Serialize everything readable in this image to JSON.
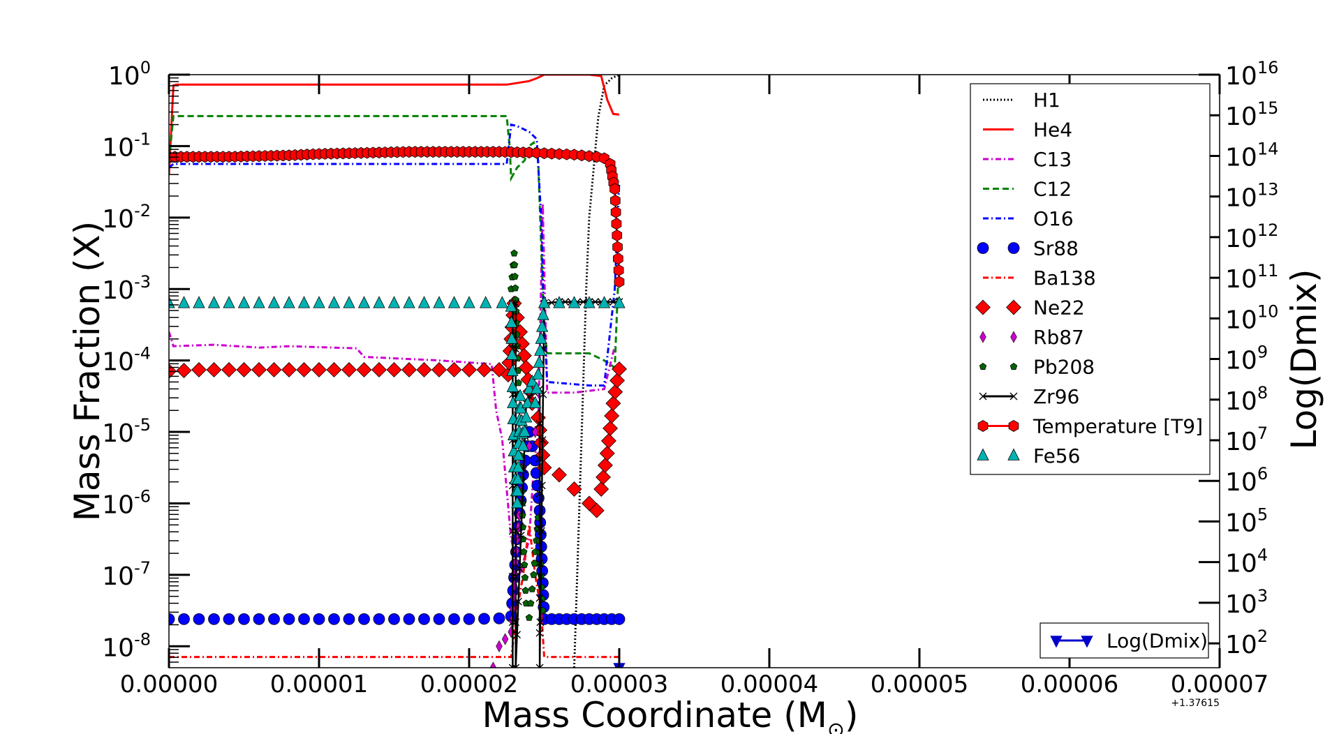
{
  "chart_data": {
    "type": "line",
    "xlabel": "Mass Coordinate (M",
    "xlabel_sun_symbol": "⊙",
    "xlabel_close": ")",
    "ylabel": "Mass Fraction (X)",
    "y2label": "Log(Dmix)",
    "x_offset_label": "+1.37615",
    "xlim": [
      0.0,
      7e-05
    ],
    "x_ticks": [
      "0.00000",
      "0.00001",
      "0.00002",
      "0.00003",
      "0.00004",
      "0.00005",
      "0.00006",
      "0.00007"
    ],
    "y_scale": "log",
    "ylim_log10": [
      -8.3,
      0.0
    ],
    "y_ticks": [
      {
        "base": "10",
        "exp": "0",
        "log": 0
      },
      {
        "base": "10",
        "exp": "-1",
        "log": -1
      },
      {
        "base": "10",
        "exp": "-2",
        "log": -2
      },
      {
        "base": "10",
        "exp": "-3",
        "log": -3
      },
      {
        "base": "10",
        "exp": "-4",
        "log": -4
      },
      {
        "base": "10",
        "exp": "-5",
        "log": -5
      },
      {
        "base": "10",
        "exp": "-6",
        "log": -6
      },
      {
        "base": "10",
        "exp": "-7",
        "log": -7
      },
      {
        "base": "10",
        "exp": "-8",
        "log": -8
      }
    ],
    "y2_scale": "log",
    "y2lim_log10": [
      1.4,
      16.0
    ],
    "y2_ticks": [
      {
        "base": "10",
        "exp": "16",
        "log": 16
      },
      {
        "base": "10",
        "exp": "15",
        "log": 15
      },
      {
        "base": "10",
        "exp": "14",
        "log": 14
      },
      {
        "base": "10",
        "exp": "13",
        "log": 13
      },
      {
        "base": "10",
        "exp": "12",
        "log": 12
      },
      {
        "base": "10",
        "exp": "11",
        "log": 11
      },
      {
        "base": "10",
        "exp": "10",
        "log": 10
      },
      {
        "base": "10",
        "exp": "9",
        "log": 9
      },
      {
        "base": "10",
        "exp": "8",
        "log": 8
      },
      {
        "base": "10",
        "exp": "7",
        "log": 7
      },
      {
        "base": "10",
        "exp": "6",
        "log": 6
      },
      {
        "base": "10",
        "exp": "5",
        "log": 5
      },
      {
        "base": "10",
        "exp": "4",
        "log": 4
      },
      {
        "base": "10",
        "exp": "3",
        "log": 3
      },
      {
        "base": "10",
        "exp": "2",
        "log": 2
      }
    ],
    "legend_placement": "top-right",
    "legend2_placement": "bottom-right",
    "series": [
      {
        "name": "H1",
        "color": "#000000",
        "style": "dotted",
        "marker": "none",
        "x": [
          2.7e-05,
          2.72e-05,
          2.75e-05,
          2.78e-05,
          2.8e-05,
          2.83e-05,
          2.86e-05,
          2.9e-05,
          2.95e-05,
          3e-05
        ],
        "y_log10": [
          -8.3,
          -7.0,
          -5.0,
          -3.0,
          -2.0,
          -1.3,
          -0.6,
          -0.15,
          -0.05,
          0.0
        ]
      },
      {
        "name": "He4",
        "color": "#ff0000",
        "style": "solid",
        "marker": "none",
        "x": [
          0.0,
          3e-07,
          5e-07,
          1e-05,
          2.25e-05,
          2.28e-05,
          2.4e-05,
          2.45e-05,
          2.47e-05,
          2.5e-05,
          2.8e-05,
          2.88e-05,
          2.92e-05,
          2.96e-05,
          3e-05
        ],
        "y_log10": [
          -1.4,
          -0.15,
          -0.14,
          -0.14,
          -0.14,
          -0.13,
          -0.09,
          -0.05,
          -0.03,
          0.0,
          0.0,
          -0.02,
          -0.35,
          -0.55,
          -0.56
        ]
      },
      {
        "name": "C13",
        "color": "#cc00cc",
        "style": "dashdot",
        "marker": "none",
        "x": [
          0.0,
          3e-07,
          3e-06,
          6e-06,
          8e-06,
          1.25e-05,
          1.3e-05,
          1.8e-05,
          2.15e-05,
          2.18e-05,
          2.22e-05,
          2.28e-05,
          2.34e-05,
          2.4e-05,
          2.43e-05,
          2.46e-05,
          2.49e-05,
          2.52e-05,
          2.7e-05,
          2.9e-05,
          2.97e-05
        ],
        "y_log10": [
          -3.6,
          -3.8,
          -3.78,
          -3.82,
          -3.8,
          -3.83,
          -3.95,
          -4.0,
          -4.05,
          -4.7,
          -5.1,
          -6.5,
          -7.0,
          -6.5,
          -5.5,
          -5.0,
          -1.8,
          -4.45,
          -4.45,
          -4.4,
          -3.8
        ]
      },
      {
        "name": "C12",
        "color": "#008000",
        "style": "dashed",
        "marker": "none",
        "x": [
          0.0,
          3e-07,
          5e-06,
          2.25e-05,
          2.27e-05,
          2.28e-05,
          2.32e-05,
          2.37e-05,
          2.4e-05,
          2.43e-05,
          2.46e-05,
          2.5e-05,
          2.52e-05,
          2.8e-05,
          2.9e-05,
          2.97e-05,
          3e-05
        ],
        "y_log10": [
          -1.2,
          -0.58,
          -0.58,
          -0.58,
          -1.0,
          -1.45,
          -1.3,
          -1.2,
          -1.0,
          -0.95,
          -1.2,
          -3.6,
          -3.9,
          -3.9,
          -4.0,
          -4.1,
          -2.5
        ]
      },
      {
        "name": "O16",
        "color": "#0000ff",
        "style": "dashdot",
        "marker": "none",
        "x": [
          0.0,
          3e-07,
          5e-06,
          2.25e-05,
          2.28e-05,
          2.32e-05,
          2.4e-05,
          2.45e-05,
          2.48e-05,
          2.5e-05,
          2.52e-05,
          2.8e-05,
          2.9e-05,
          2.97e-05,
          3e-05
        ],
        "y_log10": [
          -1.3,
          -1.25,
          -1.25,
          -1.25,
          -0.7,
          -0.72,
          -0.8,
          -0.9,
          -2.0,
          -3.5,
          -4.3,
          -4.35,
          -4.35,
          -3.0,
          -1.5
        ]
      },
      {
        "name": "Sr88",
        "color": "#0000ff",
        "style": "none",
        "marker": "circle",
        "x": [
          0.0,
          2e-06,
          4e-06,
          6e-06,
          8e-06,
          1e-05,
          1.2e-05,
          1.4e-05,
          1.6e-05,
          1.8e-05,
          2e-05,
          2.2e-05,
          2.28e-05,
          2.32e-05,
          2.36e-05,
          2.4e-05,
          2.44e-05,
          2.47e-05,
          2.5e-05,
          2.55e-05,
          2.6e-05,
          2.65e-05,
          2.7e-05,
          2.75e-05,
          2.8e-05,
          2.85e-05,
          2.9e-05,
          2.95e-05,
          3e-05
        ],
        "y_log10": [
          -7.62,
          -7.62,
          -7.62,
          -7.62,
          -7.62,
          -7.62,
          -7.62,
          -7.62,
          -7.62,
          -7.62,
          -7.62,
          -7.61,
          -7.58,
          -6.5,
          -5.6,
          -5.0,
          -5.4,
          -6.1,
          -7.62,
          -7.62,
          -7.62,
          -7.62,
          -7.62,
          -7.62,
          -7.62,
          -7.62,
          -7.62,
          -7.62,
          -7.62
        ]
      },
      {
        "name": "Ba138",
        "color": "#ff0000",
        "style": "dashdot",
        "marker": "none",
        "x": [
          0.0,
          2.28e-05,
          2.32e-05,
          2.36e-05,
          2.4e-05,
          2.44e-05,
          2.48e-05,
          2.5e-05,
          3e-05
        ],
        "y_log10": [
          -8.15,
          -8.15,
          -7.5,
          -7.0,
          -6.3,
          -7.0,
          -7.5,
          -8.15,
          -8.15
        ]
      },
      {
        "name": "Ne22",
        "color": "#ff0000",
        "style": "none",
        "marker": "diamond",
        "x": [
          0.0,
          2e-06,
          4e-06,
          6e-06,
          8e-06,
          1e-05,
          1.2e-05,
          1.4e-05,
          1.6e-05,
          1.8e-05,
          2e-05,
          2.2e-05,
          2.26e-05,
          2.3e-05,
          2.34e-05,
          2.38e-05,
          2.42e-05,
          2.46e-05,
          2.5e-05,
          2.6e-05,
          2.7e-05,
          2.8e-05,
          2.85e-05,
          2.88e-05,
          2.92e-05,
          2.96e-05,
          3e-05
        ],
        "y_log10": [
          -4.15,
          -4.13,
          -4.13,
          -4.13,
          -4.13,
          -4.13,
          -4.13,
          -4.13,
          -4.13,
          -4.13,
          -4.13,
          -4.13,
          -4.2,
          -3.2,
          -3.6,
          -4.1,
          -4.6,
          -4.8,
          -5.5,
          -5.6,
          -5.8,
          -6.0,
          -6.1,
          -5.8,
          -5.3,
          -4.6,
          -4.12
        ]
      },
      {
        "name": "Rb87",
        "color": "#cc00cc",
        "style": "none",
        "marker": "thin-diamond",
        "x": [
          2.16e-05,
          2.2e-05,
          2.24e-05,
          2.28e-05,
          2.32e-05,
          2.36e-05,
          2.4e-05,
          2.44e-05
        ],
        "y_log10": [
          -8.3,
          -8.0,
          -7.9,
          -7.8,
          -6.5,
          -5.5,
          -5.2,
          -5.0
        ]
      },
      {
        "name": "Pb208",
        "color": "#006400",
        "style": "none",
        "marker": "pentagon",
        "x": [
          2.28e-05,
          2.3e-05,
          2.32e-05,
          2.34e-05,
          2.36e-05,
          2.38e-05,
          2.4e-05,
          2.43e-05,
          2.46e-05,
          2.49e-05
        ],
        "y_log10": [
          -3.0,
          -2.5,
          -3.8,
          -5.0,
          -6.5,
          -7.4,
          -7.6,
          -7.0,
          -6.2,
          -7.5
        ]
      },
      {
        "name": "Zr96",
        "color": "#000000",
        "style": "solid",
        "marker": "x",
        "x": [
          2.29e-05,
          2.29e-05,
          2.31e-05,
          2.31e-05,
          2.38e-05,
          2.4e-05,
          2.47e-05,
          2.47e-05,
          2.5e-05,
          2.6e-05,
          2.8e-05,
          3e-05
        ],
        "y_log10": [
          -8.3,
          -3.2,
          -3.2,
          -8.3,
          -4.6,
          -4.5,
          -4.4,
          -8.3,
          -3.2,
          -3.18,
          -3.18,
          -3.18
        ]
      },
      {
        "name": "Temperature [T9]",
        "color": "#ff0000",
        "style": "solid",
        "marker": "hexagon",
        "x": [
          0.0,
          2e-06,
          4e-06,
          6e-06,
          8e-06,
          1e-05,
          1.2e-05,
          1.4e-05,
          1.6e-05,
          1.8e-05,
          2e-05,
          2.2e-05,
          2.4e-05,
          2.5e-05,
          2.6e-05,
          2.7e-05,
          2.8e-05,
          2.85e-05,
          2.9e-05,
          2.94e-05,
          2.97e-05,
          3e-05
        ],
        "y_log10": [
          -1.15,
          -1.15,
          -1.15,
          -1.14,
          -1.13,
          -1.11,
          -1.1,
          -1.09,
          -1.08,
          -1.08,
          -1.08,
          -1.08,
          -1.09,
          -1.1,
          -1.11,
          -1.12,
          -1.14,
          -1.15,
          -1.17,
          -1.25,
          -1.6,
          -2.9
        ]
      },
      {
        "name": "Fe56",
        "color": "#00b3b3",
        "style": "none",
        "marker": "triangle",
        "x": [
          0.0,
          2e-06,
          4e-06,
          6e-06,
          8e-06,
          1e-05,
          1.2e-05,
          1.4e-05,
          1.6e-05,
          1.8e-05,
          2e-05,
          2.22e-05,
          2.28e-05,
          2.3e-05,
          2.32e-05,
          2.34e-05,
          2.36e-05,
          2.38e-05,
          2.4e-05,
          2.42e-05,
          2.44e-05,
          2.46e-05,
          2.5e-05,
          2.6e-05,
          2.8e-05,
          3e-05
        ],
        "y_log10": [
          -3.2,
          -3.2,
          -3.2,
          -3.2,
          -3.2,
          -3.2,
          -3.2,
          -3.2,
          -3.2,
          -3.2,
          -3.2,
          -3.2,
          -3.25,
          -5.5,
          -6.0,
          -4.5,
          -5.2,
          -4.8,
          -4.4,
          -4.3,
          -4.6,
          -4.2,
          -3.2,
          -3.2,
          -3.2,
          -3.2
        ]
      }
    ],
    "series2": [
      {
        "name": "Log(Dmix)",
        "color": "#0000cc",
        "style": "solid",
        "marker": "triangle-down",
        "x": [
          3e-05
        ],
        "y2_log10": [
          1.4
        ]
      }
    ]
  }
}
